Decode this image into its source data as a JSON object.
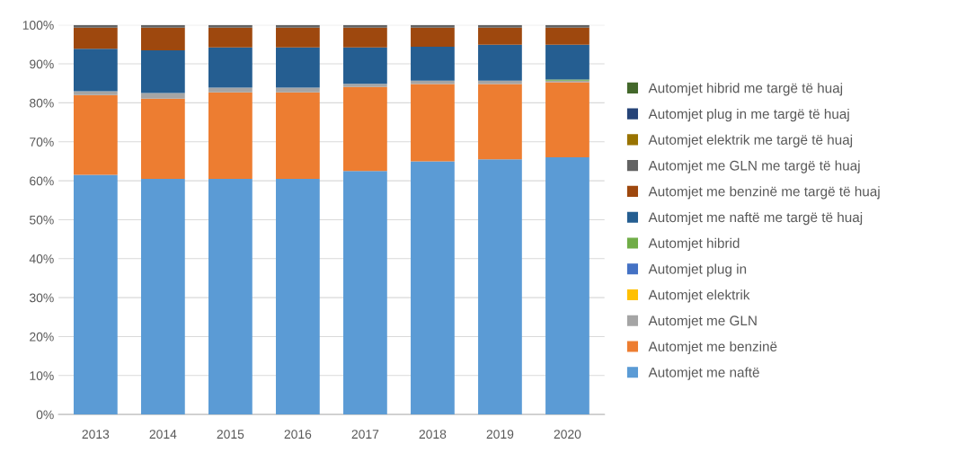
{
  "chart_data": {
    "type": "bar",
    "stacked": true,
    "categories": [
      "2013",
      "2014",
      "2015",
      "2016",
      "2017",
      "2018",
      "2019",
      "2020"
    ],
    "series": [
      {
        "name": "Automjet me naftë",
        "color": "#5b9bd5",
        "values": [
          61.5,
          60.5,
          60.5,
          60.5,
          62.5,
          65,
          65.5,
          66
        ]
      },
      {
        "name": "Automjet me benzinë",
        "color": "#ed7d31",
        "values": [
          20.5,
          20.6,
          22.2,
          22.2,
          21.6,
          19.8,
          19.3,
          19.3
        ]
      },
      {
        "name": "Automjet me GLN",
        "color": "#a5a5a5",
        "values": [
          1.0,
          1.4,
          1.2,
          1.2,
          0.8,
          0.9,
          0.9,
          0.4
        ]
      },
      {
        "name": "Automjet elektrik",
        "color": "#ffc000",
        "values": [
          0,
          0,
          0,
          0,
          0,
          0,
          0,
          0
        ]
      },
      {
        "name": "Automjet plug in",
        "color": "#4472c4",
        "values": [
          0,
          0,
          0,
          0,
          0,
          0,
          0,
          0
        ]
      },
      {
        "name": "Automjet hibrid",
        "color": "#70ad47",
        "values": [
          0,
          0,
          0,
          0,
          0,
          0,
          0,
          0.3
        ]
      },
      {
        "name": "Automjet me naftë me targë të huaj",
        "color": "#255e91",
        "values": [
          10.9,
          11.0,
          10.3,
          10.3,
          9.3,
          8.7,
          9.2,
          8.9
        ]
      },
      {
        "name": "Automjet me benzinë me targë të huaj",
        "color": "#9e480e",
        "values": [
          5.4,
          5.8,
          5.1,
          5.1,
          5.1,
          4.9,
          4.4,
          4.4
        ]
      },
      {
        "name": "Automjet me GLN me targë të huaj",
        "color": "#636363",
        "values": [
          0.7,
          0.7,
          0.7,
          0.7,
          0.7,
          0.7,
          0.7,
          0.7
        ]
      },
      {
        "name": "Automjet elektrik me targë të huaj",
        "color": "#997300",
        "values": [
          0,
          0,
          0,
          0,
          0,
          0,
          0,
          0
        ]
      },
      {
        "name": "Automjet plug in me targë të huaj",
        "color": "#264478",
        "values": [
          0,
          0,
          0,
          0,
          0,
          0,
          0,
          0
        ]
      },
      {
        "name": "Automjet hibrid me targë të huaj",
        "color": "#43682b",
        "values": [
          0,
          0,
          0,
          0,
          0,
          0,
          0,
          0
        ]
      }
    ],
    "ylim": [
      0,
      100
    ],
    "yticks": [
      {
        "value": 0,
        "label": "0%"
      },
      {
        "value": 10,
        "label": "10%"
      },
      {
        "value": 20,
        "label": "20%"
      },
      {
        "value": 30,
        "label": "30%"
      },
      {
        "value": 40,
        "label": "40%"
      },
      {
        "value": 50,
        "label": "50%"
      },
      {
        "value": 60,
        "label": "60%"
      },
      {
        "value": 70,
        "label": "70%"
      },
      {
        "value": 80,
        "label": "80%"
      },
      {
        "value": 90,
        "label": "90%"
      },
      {
        "value": 100,
        "label": "100%"
      }
    ],
    "grid": "y",
    "legend": "right"
  }
}
